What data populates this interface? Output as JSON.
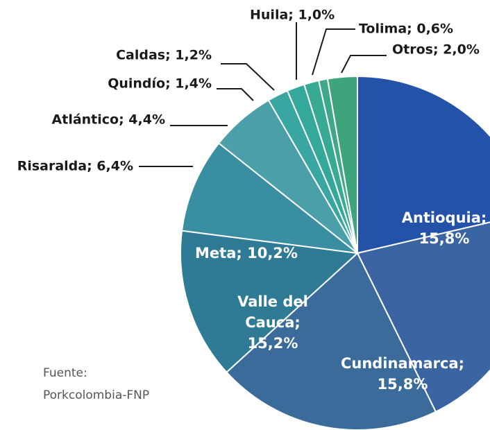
{
  "chart_data": {
    "type": "pie",
    "labels": [
      [
        "Antioquia;",
        "15,8%"
      ],
      [
        "Cundinamarca;",
        "15,8%"
      ],
      [
        "Valle del",
        "Cauca;",
        "15,2%"
      ],
      [
        "Meta; 10,2%"
      ],
      [
        "Risaralda; 6,4%"
      ],
      [
        "Atlántico; 4,4%"
      ],
      [
        "Quindío; 1,4%"
      ],
      [
        "Caldas; 1,2%"
      ],
      [
        "Huila; 1,0%"
      ],
      [
        "Tolima; 0,6%"
      ],
      [
        "Otros; 2,0%"
      ]
    ],
    "values": [
      15.8,
      15.8,
      15.2,
      10.2,
      6.4,
      4.4,
      1.4,
      1.2,
      1.0,
      0.6,
      2.0
    ],
    "colors": [
      "#2452a8",
      "#3a64a2",
      "#3a6b9b",
      "#2f7b95",
      "#3a8ea2",
      "#4a9fa8",
      "#3aa6a2",
      "#34a99b",
      "#38a993",
      "#3ea889",
      "#3ea47b"
    ],
    "source": [
      "Fuente:",
      "Porkcolombia-FNP"
    ]
  }
}
